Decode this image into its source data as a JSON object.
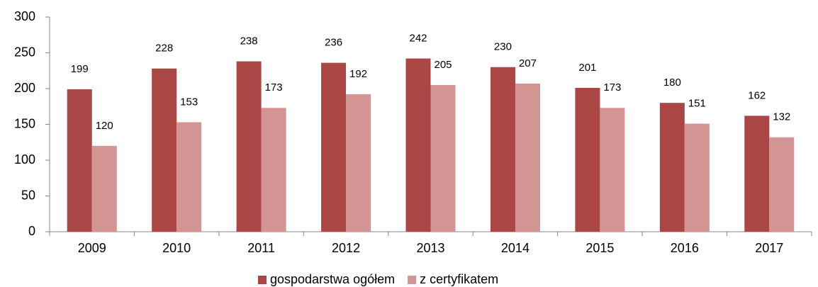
{
  "chart_data": {
    "type": "bar",
    "categories": [
      "2009",
      "2010",
      "2011",
      "2012",
      "2013",
      "2014",
      "2015",
      "2016",
      "2017"
    ],
    "series": [
      {
        "name": "gospodarstwa ogółem",
        "color": "#aa4643",
        "values": [
          199,
          228,
          238,
          236,
          242,
          230,
          201,
          180,
          162
        ]
      },
      {
        "name": "z certyfikatem",
        "color": "#d39594",
        "values": [
          120,
          153,
          173,
          192,
          205,
          207,
          173,
          151,
          132
        ]
      }
    ],
    "ylim": [
      0,
      300
    ],
    "yticks": [
      0,
      50,
      100,
      150,
      200,
      250,
      300
    ],
    "grid": false,
    "legend": "bottom"
  }
}
